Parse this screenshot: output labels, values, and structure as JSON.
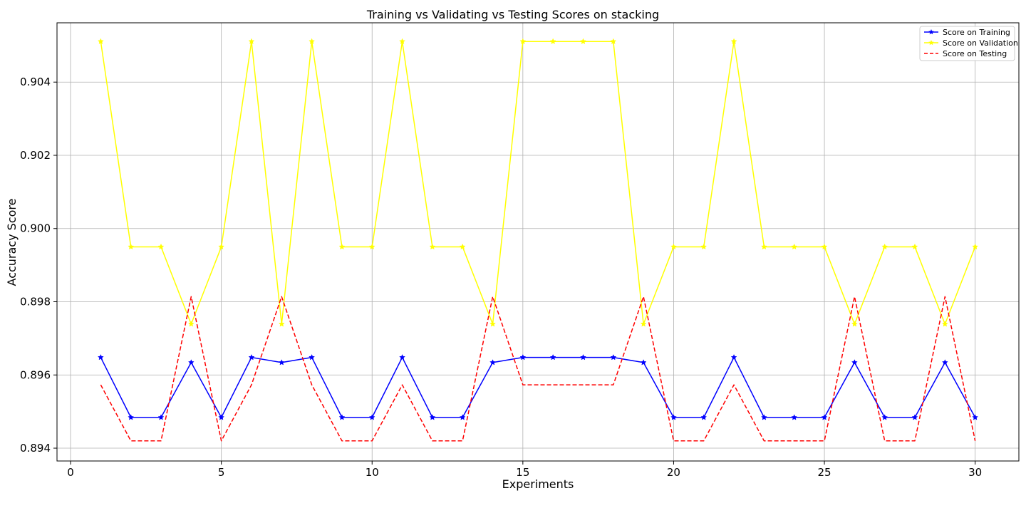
{
  "chart_data": {
    "type": "line",
    "title": "Training vs Validating vs Testing Scores on stacking",
    "xlabel": "Experiments",
    "ylabel": "Accuracy Score",
    "xlim": [
      -0.45,
      31.45
    ],
    "ylim": [
      0.89365,
      0.90562
    ],
    "xticks": [
      0,
      5,
      10,
      15,
      20,
      25,
      30
    ],
    "yticks": [
      0.894,
      0.896,
      0.898,
      0.9,
      0.902,
      0.904
    ],
    "ytick_labels": [
      "0.894",
      "0.896",
      "0.898",
      "0.900",
      "0.902",
      "0.904"
    ],
    "grid": true,
    "legend_position": "top-right",
    "x": [
      1,
      2,
      3,
      4,
      5,
      6,
      7,
      8,
      9,
      10,
      11,
      12,
      13,
      14,
      15,
      16,
      17,
      18,
      19,
      20,
      21,
      22,
      23,
      24,
      25,
      26,
      27,
      28,
      29,
      30
    ],
    "series": [
      {
        "name": "Score on Training",
        "color": "#0000ff",
        "style": "solid",
        "marker": "star",
        "values": [
          0.89648,
          0.89484,
          0.89484,
          0.89634,
          0.89484,
          0.89648,
          0.89634,
          0.89648,
          0.89484,
          0.89484,
          0.89648,
          0.89484,
          0.89484,
          0.89634,
          0.89648,
          0.89648,
          0.89648,
          0.89648,
          0.89634,
          0.89484,
          0.89484,
          0.89648,
          0.89484,
          0.89484,
          0.89484,
          0.89634,
          0.89484,
          0.89484,
          0.89634,
          0.89484
        ]
      },
      {
        "name": "Score on Validation",
        "color": "#ffff00",
        "style": "solid",
        "marker": "star",
        "values": [
          0.90511,
          0.8995,
          0.8995,
          0.89739,
          0.8995,
          0.90511,
          0.89739,
          0.90511,
          0.8995,
          0.8995,
          0.90511,
          0.8995,
          0.8995,
          0.89739,
          0.90511,
          0.90511,
          0.90511,
          0.90511,
          0.89739,
          0.8995,
          0.8995,
          0.90511,
          0.8995,
          0.8995,
          0.8995,
          0.89739,
          0.8995,
          0.8995,
          0.89739,
          0.8995
        ]
      },
      {
        "name": "Score on Testing",
        "color": "#ff0000",
        "style": "dashed",
        "marker": "none",
        "values": [
          0.89573,
          0.8942,
          0.8942,
          0.89814,
          0.8942,
          0.89573,
          0.89814,
          0.89573,
          0.8942,
          0.8942,
          0.89573,
          0.8942,
          0.8942,
          0.89814,
          0.89573,
          0.89573,
          0.89573,
          0.89573,
          0.89814,
          0.8942,
          0.8942,
          0.89573,
          0.8942,
          0.8942,
          0.8942,
          0.89814,
          0.8942,
          0.8942,
          0.89814,
          0.8942
        ]
      }
    ]
  }
}
